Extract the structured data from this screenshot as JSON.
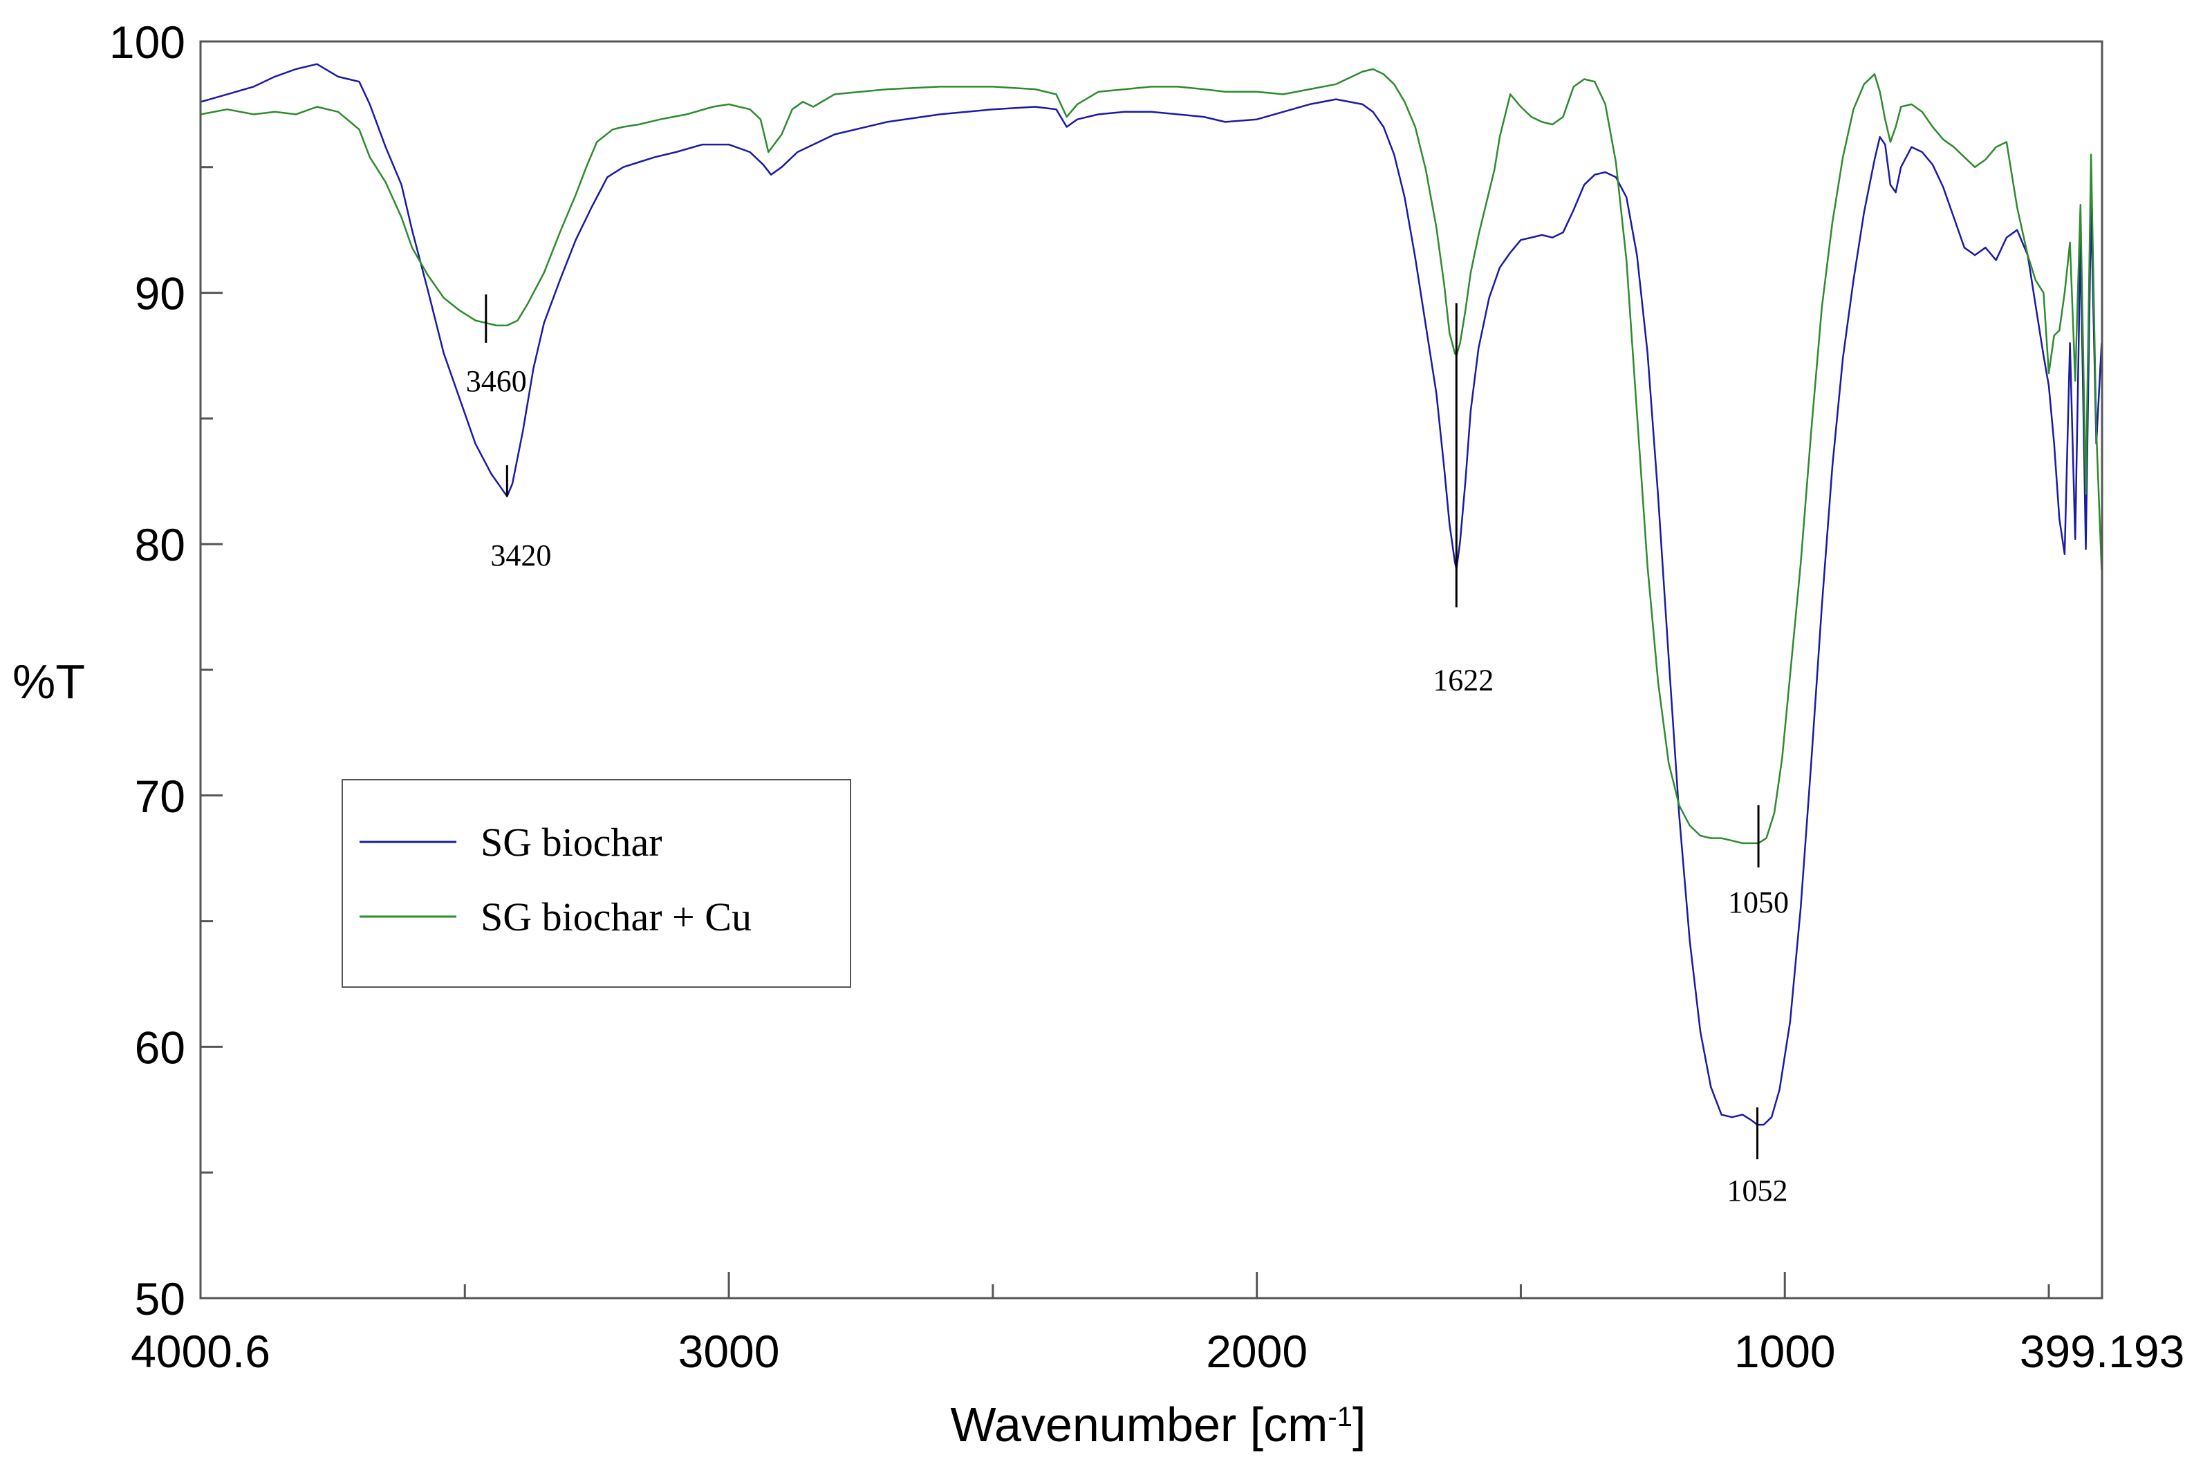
{
  "chart_data": {
    "type": "line",
    "title": "",
    "xlabel_main": "Wavenumber [cm",
    "xlabel_sup": "-1",
    "xlabel_end": "]",
    "ylabel": "%T",
    "xlim": [
      4000.6,
      399.193
    ],
    "ylim": [
      50,
      100
    ],
    "x_reversed": true,
    "grid": false,
    "legend_position": "center-left",
    "x_ticks": [
      {
        "value": 4000.6,
        "label": "4000.6"
      },
      {
        "value": 3000,
        "label": "3000"
      },
      {
        "value": 2000,
        "label": "2000"
      },
      {
        "value": 1000,
        "label": "1000"
      },
      {
        "value": 399.193,
        "label": "399.193"
      }
    ],
    "x_minor_ticks": [
      3500,
      2500,
      1500,
      500
    ],
    "y_ticks": [
      {
        "value": 100,
        "label": "100"
      },
      {
        "value": 90,
        "label": "90"
      },
      {
        "value": 80,
        "label": "80"
      },
      {
        "value": 70,
        "label": "70"
      },
      {
        "value": 60,
        "label": "60"
      },
      {
        "value": 50,
        "label": "50"
      }
    ],
    "y_minor_ticks": [
      95,
      85,
      75,
      65,
      55
    ],
    "series": [
      {
        "name": "SG biochar",
        "color": "#1a1aa6",
        "x": [
          4000,
          3950,
          3900,
          3860,
          3820,
          3780,
          3740,
          3700,
          3680,
          3650,
          3620,
          3600,
          3570,
          3540,
          3510,
          3480,
          3450,
          3430,
          3420,
          3410,
          3390,
          3370,
          3350,
          3320,
          3290,
          3260,
          3230,
          3200,
          3170,
          3140,
          3100,
          3050,
          3000,
          2960,
          2935,
          2920,
          2900,
          2870,
          2850,
          2800,
          2700,
          2600,
          2500,
          2420,
          2380,
          2360,
          2340,
          2300,
          2250,
          2200,
          2150,
          2100,
          2060,
          2000,
          1950,
          1900,
          1850,
          1800,
          1780,
          1760,
          1740,
          1720,
          1700,
          1680,
          1660,
          1645,
          1635,
          1625,
          1622,
          1615,
          1605,
          1595,
          1580,
          1560,
          1540,
          1520,
          1500,
          1480,
          1460,
          1440,
          1420,
          1400,
          1380,
          1360,
          1340,
          1320,
          1300,
          1280,
          1260,
          1240,
          1220,
          1200,
          1180,
          1160,
          1140,
          1120,
          1100,
          1080,
          1065,
          1052,
          1040,
          1025,
          1010,
          990,
          970,
          950,
          930,
          910,
          890,
          870,
          850,
          830,
          820,
          810,
          800,
          790,
          780,
          760,
          740,
          720,
          700,
          680,
          660,
          640,
          620,
          600,
          580,
          560,
          540,
          525,
          510,
          500,
          490,
          480,
          470,
          460,
          450,
          440,
          430,
          420,
          410,
          400
        ],
        "y": [
          97.6,
          97.9,
          98.2,
          98.6,
          98.9,
          99.1,
          98.6,
          98.4,
          97.5,
          95.8,
          94.3,
          92.5,
          90.1,
          87.6,
          85.8,
          84.0,
          82.8,
          82.2,
          81.9,
          82.4,
          84.5,
          87.0,
          88.8,
          90.5,
          92.1,
          93.4,
          94.6,
          95.0,
          95.2,
          95.4,
          95.6,
          95.9,
          95.9,
          95.6,
          95.1,
          94.7,
          95.0,
          95.6,
          95.8,
          96.3,
          96.8,
          97.1,
          97.3,
          97.4,
          97.3,
          96.6,
          96.9,
          97.1,
          97.2,
          97.2,
          97.1,
          97.0,
          96.8,
          96.9,
          97.2,
          97.5,
          97.7,
          97.5,
          97.2,
          96.6,
          95.5,
          93.8,
          91.4,
          88.7,
          86.0,
          83.0,
          80.8,
          79.3,
          79.0,
          80.1,
          82.5,
          85.3,
          87.8,
          89.8,
          91.0,
          91.6,
          92.1,
          92.2,
          92.3,
          92.2,
          92.4,
          93.3,
          94.3,
          94.7,
          94.8,
          94.6,
          93.8,
          91.5,
          87.6,
          81.9,
          75.5,
          69.2,
          64.2,
          60.6,
          58.4,
          57.3,
          57.2,
          57.3,
          57.1,
          56.9,
          56.9,
          57.2,
          58.3,
          61.0,
          65.5,
          71.3,
          77.5,
          83.1,
          87.4,
          90.5,
          93.2,
          95.3,
          96.2,
          95.9,
          94.3,
          94.0,
          95.0,
          95.8,
          95.6,
          95.1,
          94.2,
          93.0,
          91.8,
          91.5,
          91.8,
          91.3,
          92.2,
          92.5,
          91.5,
          89.5,
          87.5,
          86.3,
          84.0,
          81.0,
          79.6,
          88.0,
          80.2,
          92.0,
          79.8,
          93.5,
          84.0,
          88.0
        ],
        "labels": [
          {
            "x": 3420,
            "y": 81.9,
            "text": "3420"
          },
          {
            "x": 1622,
            "y": 79.0,
            "text": "1622"
          },
          {
            "x": 1052,
            "y": 56.9,
            "text": "1052"
          }
        ]
      },
      {
        "name": "SG biochar + Cu",
        "color": "#2e8b2e",
        "x": [
          4000,
          3950,
          3900,
          3860,
          3820,
          3780,
          3740,
          3700,
          3680,
          3650,
          3620,
          3600,
          3570,
          3540,
          3510,
          3480,
          3460,
          3440,
          3420,
          3400,
          3380,
          3350,
          3320,
          3290,
          3270,
          3250,
          3220,
          3200,
          3170,
          3130,
          3080,
          3030,
          3000,
          2960,
          2940,
          2925,
          2900,
          2880,
          2860,
          2840,
          2800,
          2700,
          2600,
          2500,
          2420,
          2380,
          2360,
          2340,
          2300,
          2250,
          2200,
          2150,
          2100,
          2060,
          2000,
          1950,
          1900,
          1850,
          1800,
          1780,
          1760,
          1740,
          1720,
          1700,
          1680,
          1660,
          1645,
          1635,
          1625,
          1622,
          1615,
          1605,
          1595,
          1580,
          1565,
          1550,
          1540,
          1520,
          1500,
          1480,
          1460,
          1440,
          1420,
          1400,
          1380,
          1360,
          1340,
          1320,
          1300,
          1280,
          1260,
          1240,
          1220,
          1200,
          1180,
          1160,
          1140,
          1120,
          1100,
          1080,
          1065,
          1050,
          1035,
          1020,
          1005,
          990,
          970,
          950,
          930,
          910,
          890,
          870,
          850,
          830,
          820,
          810,
          800,
          790,
          780,
          760,
          740,
          720,
          700,
          680,
          660,
          640,
          620,
          600,
          580,
          560,
          540,
          525,
          510,
          500,
          490,
          480,
          470,
          460,
          450,
          440,
          430,
          420,
          410,
          400
        ],
        "y": [
          97.1,
          97.3,
          97.1,
          97.2,
          97.1,
          97.4,
          97.2,
          96.5,
          95.4,
          94.4,
          93.0,
          91.8,
          90.7,
          89.8,
          89.3,
          88.9,
          88.8,
          88.7,
          88.7,
          88.9,
          89.6,
          90.8,
          92.4,
          93.9,
          95.0,
          96.0,
          96.5,
          96.6,
          96.7,
          96.9,
          97.1,
          97.4,
          97.5,
          97.3,
          96.9,
          95.6,
          96.3,
          97.3,
          97.6,
          97.4,
          97.9,
          98.1,
          98.2,
          98.2,
          98.1,
          97.9,
          97.0,
          97.5,
          98.0,
          98.1,
          98.2,
          98.2,
          98.1,
          98.0,
          98.0,
          97.9,
          98.1,
          98.3,
          98.8,
          98.9,
          98.7,
          98.3,
          97.6,
          96.6,
          94.9,
          92.6,
          90.3,
          88.4,
          87.6,
          87.5,
          88.0,
          89.3,
          90.8,
          92.3,
          93.6,
          94.9,
          96.2,
          97.9,
          97.4,
          97.0,
          96.8,
          96.7,
          97.0,
          98.2,
          98.5,
          98.4,
          97.5,
          95.2,
          91.3,
          85.2,
          79.1,
          74.5,
          71.3,
          69.6,
          68.8,
          68.4,
          68.3,
          68.3,
          68.2,
          68.1,
          68.1,
          68.1,
          68.3,
          69.3,
          71.5,
          74.8,
          79.2,
          84.5,
          89.4,
          92.8,
          95.4,
          97.3,
          98.3,
          98.7,
          98.0,
          96.9,
          96.0,
          96.6,
          97.4,
          97.5,
          97.2,
          96.6,
          96.1,
          95.8,
          95.4,
          95.0,
          95.3,
          95.8,
          96.0,
          93.4,
          91.5,
          90.5,
          90.0,
          86.8,
          88.3,
          88.5,
          90.0,
          92.0,
          86.5,
          93.5,
          82.0,
          95.5,
          84.5,
          79.0
        ],
        "labels": [
          {
            "x": 3460,
            "y": 88.7,
            "text": "3460"
          },
          {
            "x": 1050,
            "y": 68.1,
            "text": "1050"
          }
        ]
      }
    ]
  }
}
